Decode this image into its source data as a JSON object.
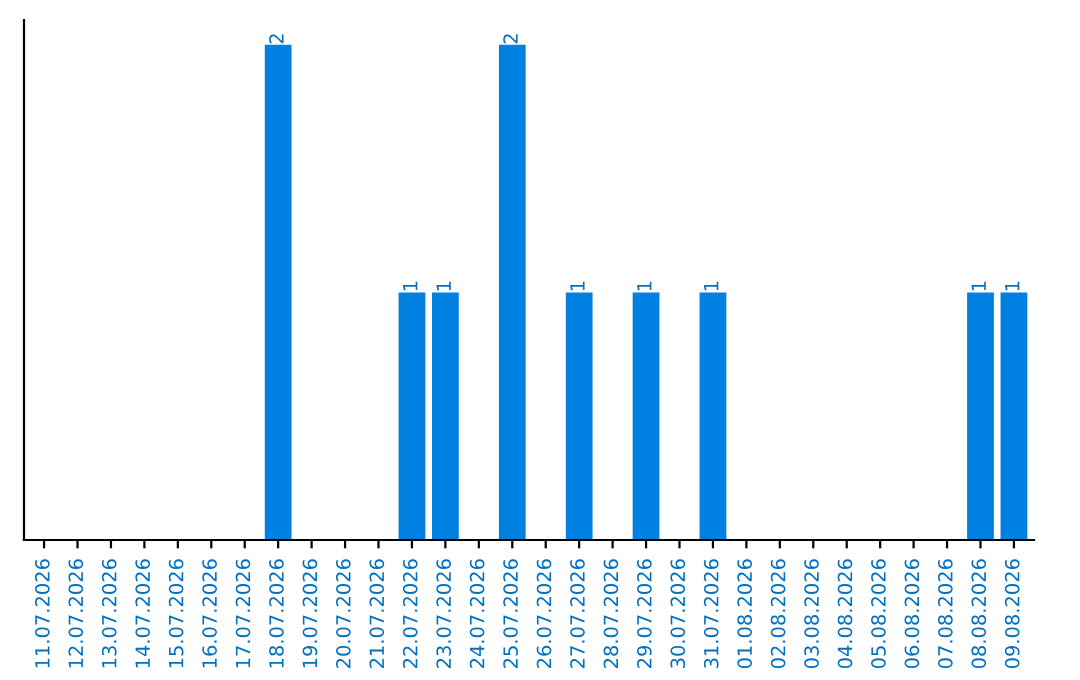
{
  "chart_data": {
    "type": "bar",
    "categories": [
      "11.07.2026",
      "12.07.2026",
      "13.07.2026",
      "14.07.2026",
      "15.07.2026",
      "16.07.2026",
      "17.07.2026",
      "18.07.2026",
      "19.07.2026",
      "20.07.2026",
      "21.07.2026",
      "22.07.2026",
      "23.07.2026",
      "24.07.2026",
      "25.07.2026",
      "26.07.2026",
      "27.07.2026",
      "28.07.2026",
      "29.07.2026",
      "30.07.2026",
      "31.07.2026",
      "01.08.2026",
      "02.08.2026",
      "03.08.2026",
      "04.08.2026",
      "05.08.2026",
      "06.08.2026",
      "07.08.2026",
      "08.08.2026",
      "09.08.2026"
    ],
    "values": [
      0,
      0,
      0,
      0,
      0,
      0,
      0,
      2,
      0,
      0,
      0,
      1,
      1,
      0,
      2,
      0,
      1,
      0,
      1,
      0,
      1,
      0,
      0,
      0,
      0,
      0,
      0,
      0,
      1,
      1
    ],
    "value_labels": [
      null,
      null,
      null,
      null,
      null,
      null,
      null,
      "2",
      null,
      null,
      null,
      "1",
      "1",
      null,
      "2",
      null,
      "1",
      null,
      "1",
      null,
      "1",
      null,
      null,
      null,
      null,
      null,
      null,
      null,
      "1",
      "1"
    ],
    "color": "#0080e0",
    "tick_labels": "x",
    "grid": false,
    "legend": false
  }
}
